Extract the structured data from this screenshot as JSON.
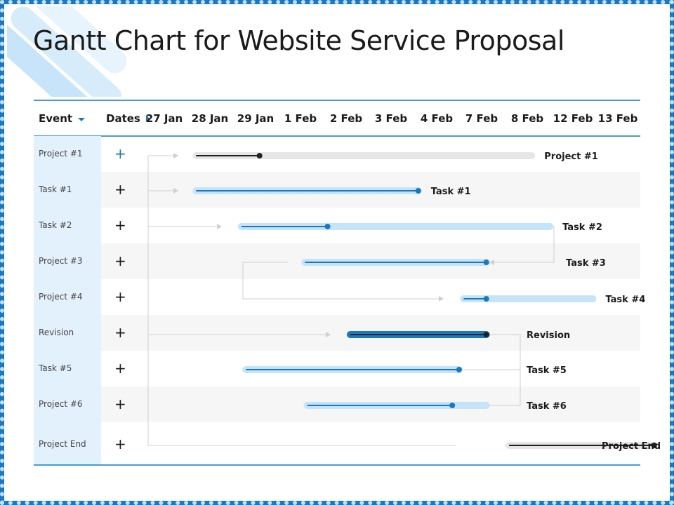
{
  "title": "Gantt Chart for Website Service Proposal",
  "header": {
    "event_label": "Event",
    "dates_label": "Dates"
  },
  "rows": [
    {
      "event": "Project #1"
    },
    {
      "event": "Task #1"
    },
    {
      "event": "Task #2"
    },
    {
      "event": "Project #3"
    },
    {
      "event": "Project #4"
    },
    {
      "event": "Revision"
    },
    {
      "event": "Task #5"
    },
    {
      "event": "Project #6"
    },
    {
      "event": "Project End"
    }
  ],
  "expand_symbol": "+",
  "colors": {
    "accent": "#1a78c2",
    "light_bar": "#c5e4fa",
    "grey_bar": "#e6e6e6",
    "dark": "#222222",
    "panel": "#e3f1fc"
  },
  "chart_data": {
    "type": "gantt",
    "title": "Gantt Chart for Website Service Proposal",
    "date_columns": [
      "27 Jan",
      "28 Jan",
      "29 Jan",
      "1 Feb",
      "2 Feb",
      "3 Feb",
      "4 Feb",
      "7 Feb",
      "8 Feb",
      "12 Feb",
      "13 Feb"
    ],
    "tasks": [
      {
        "name": "Project #1",
        "label": "Project #1",
        "start": 0.7,
        "end": 8.1,
        "progress_end": 2.1,
        "style": "grey",
        "dot": "dark"
      },
      {
        "name": "Task #1",
        "label": "Task #1",
        "start": 0.7,
        "end": 5.6,
        "progress_end": 5.6,
        "style": "light",
        "dot": "blue"
      },
      {
        "name": "Task #2",
        "label": "Task #2",
        "start": 1.7,
        "end": 8.5,
        "progress_end": 3.6,
        "style": "light",
        "dot": "blue"
      },
      {
        "name": "Project #3",
        "label": "Task #3",
        "start": 3.1,
        "end": 7.1,
        "progress_end": 7.1,
        "style": "light",
        "dot": "blue"
      },
      {
        "name": "Project #4",
        "label": "Task #4",
        "start": 6.6,
        "end": 9.45,
        "progress_end": 7.1,
        "style": "light",
        "dot": "blue"
      },
      {
        "name": "Revision",
        "label": "Revision",
        "start": 4.1,
        "end": 7.1,
        "progress_end": 7.1,
        "style": "strong",
        "dot": "dark"
      },
      {
        "name": "Task #5",
        "label": "Task #5",
        "start": 1.8,
        "end": 6.5,
        "progress_end": 6.5,
        "style": "light",
        "dot": "blue"
      },
      {
        "name": "Project #6",
        "label": "Task #6",
        "start": 3.15,
        "end": 7.1,
        "progress_end": 6.35,
        "style": "light",
        "dot": "blue"
      },
      {
        "name": "Project End",
        "label": "Project End",
        "start": 7.6,
        "end": 10.8,
        "progress_end": 10.8,
        "style": "grey",
        "dot": "dark"
      }
    ]
  }
}
